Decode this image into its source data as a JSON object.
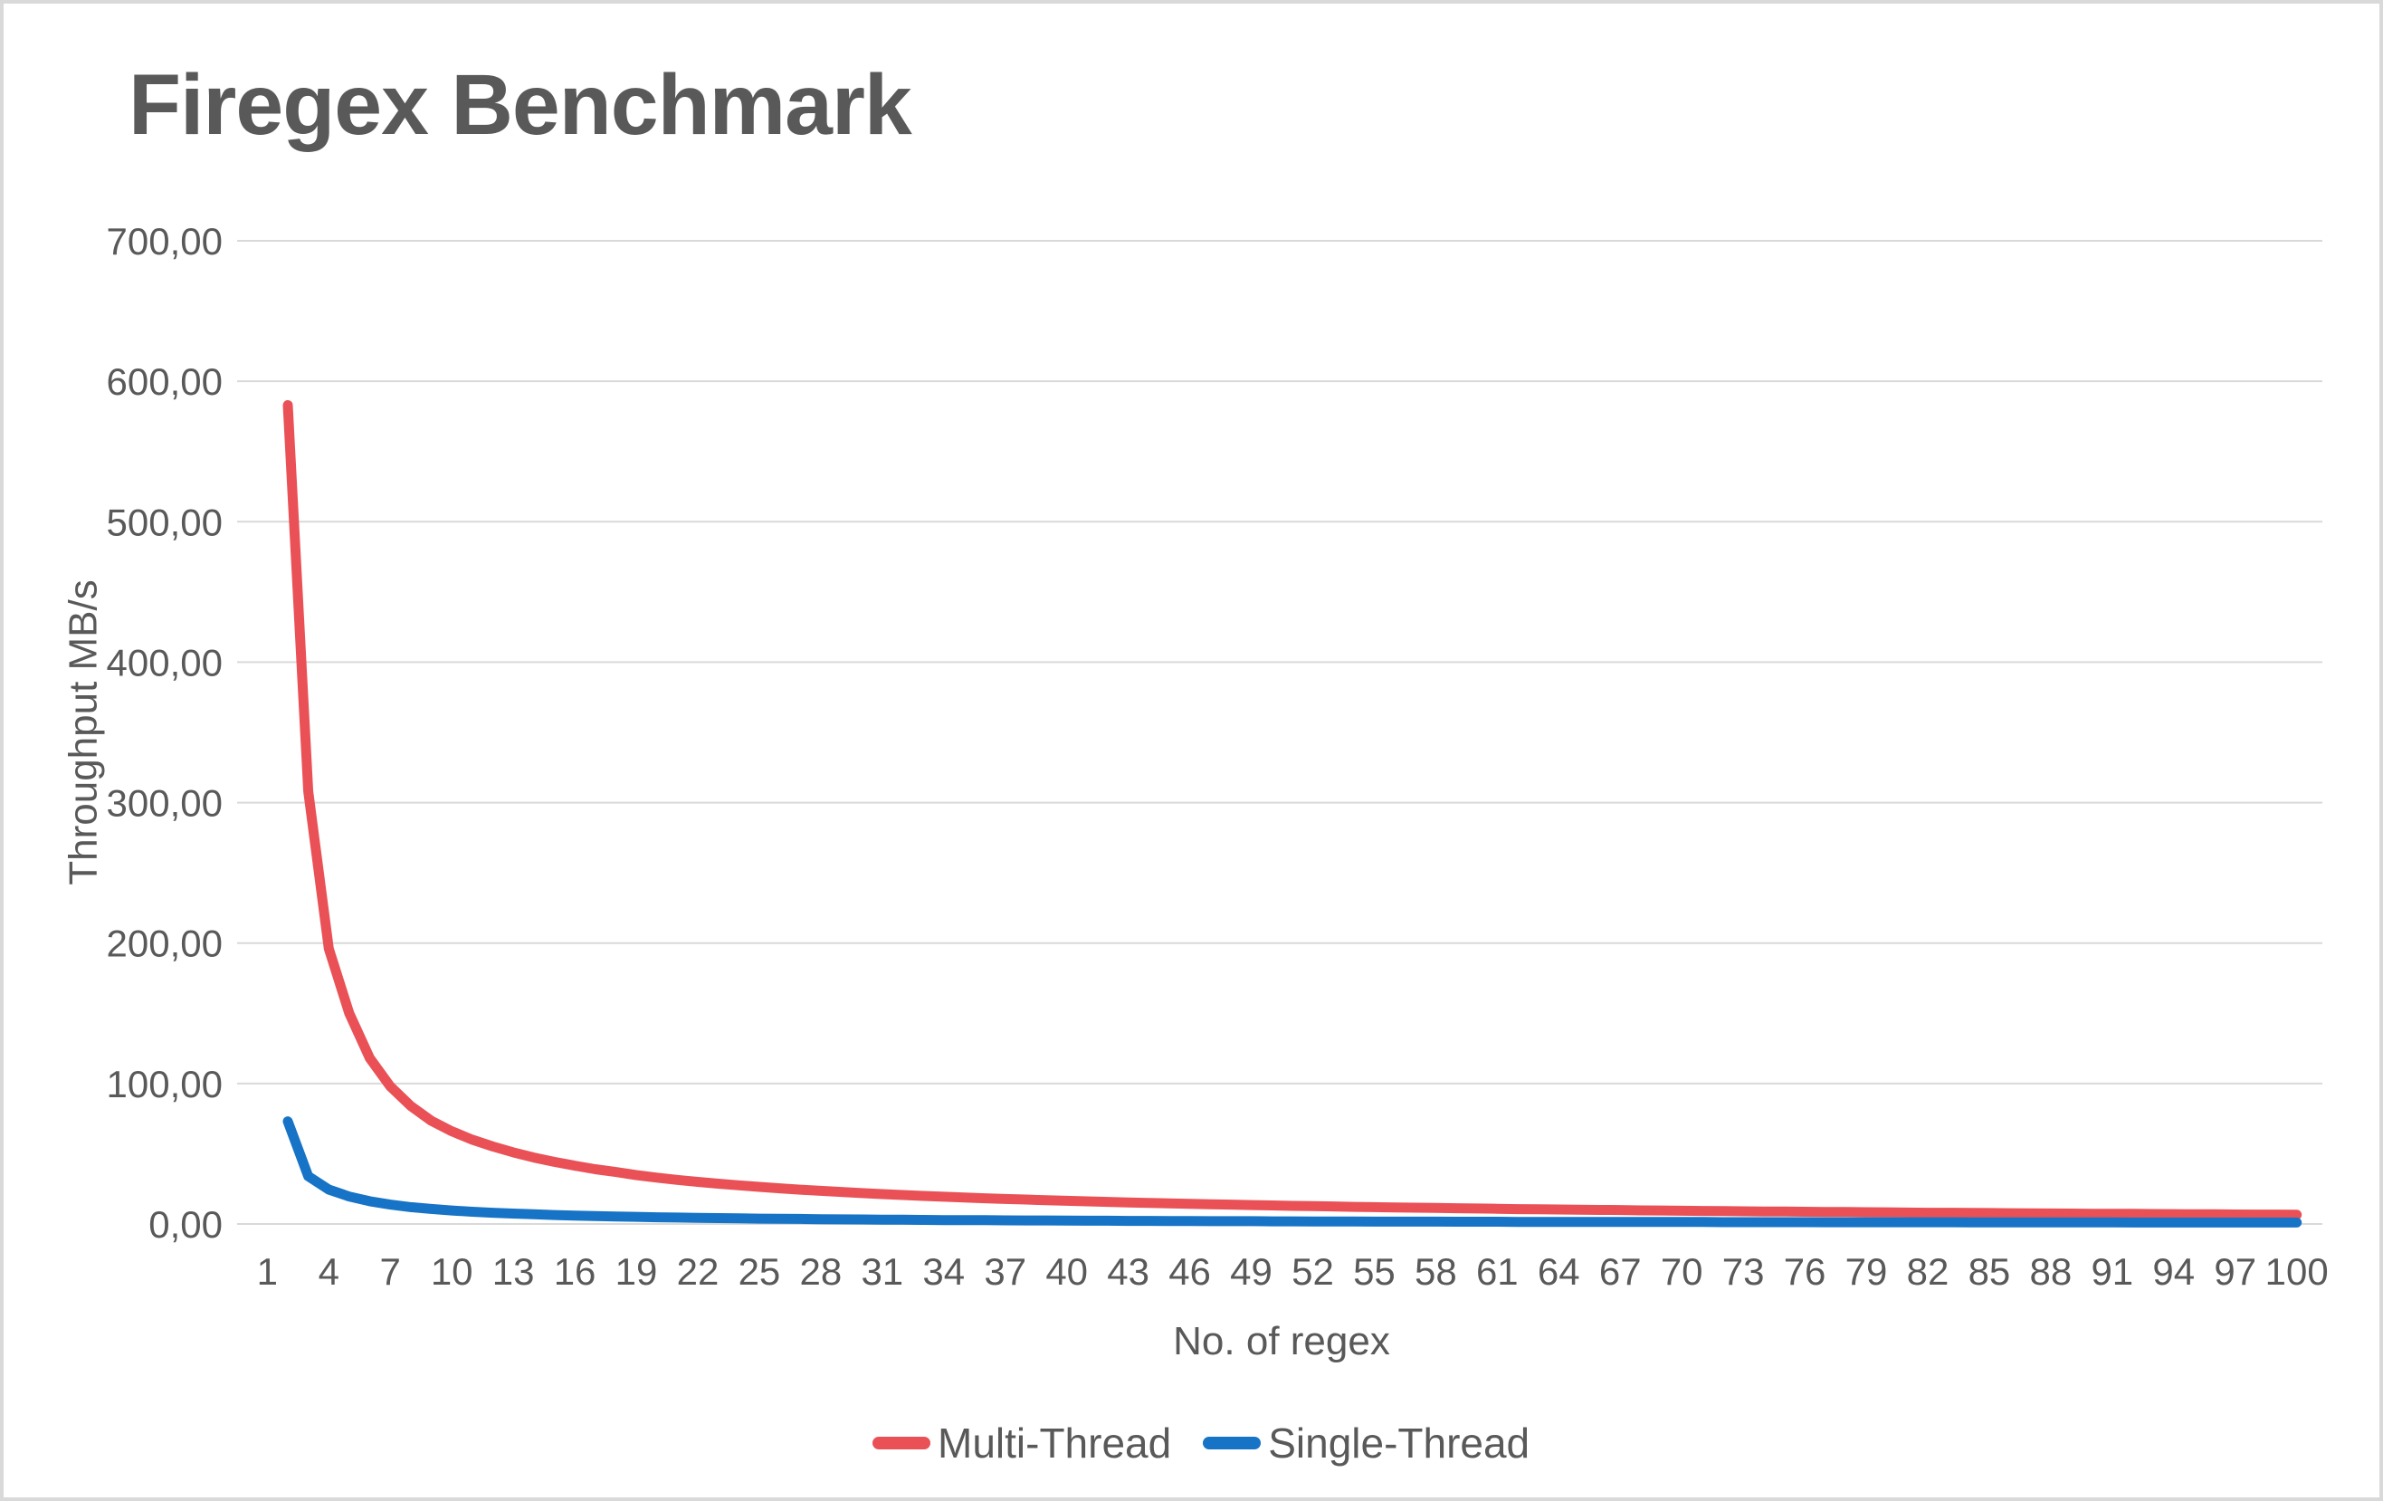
{
  "page": {
    "background_color": "#ffffff",
    "border_color": "#d9d9d9",
    "text_color": "#595959",
    "gridline_color": "#d9d9d9"
  },
  "chart_data": {
    "type": "line",
    "title": "Firegex Benchmark",
    "xlabel": "No. of regex",
    "ylabel": "Throughput MB/s",
    "ylim": [
      0,
      700
    ],
    "grid": true,
    "legend_position": "bottom",
    "y_ticks": [
      0,
      100,
      200,
      300,
      400,
      500,
      600,
      700
    ],
    "y_tick_labels": [
      "0,00",
      "100,00",
      "200,00",
      "300,00",
      "400,00",
      "500,00",
      "600,00",
      "700,00"
    ],
    "x_tick_labels": [
      "1",
      "4",
      "7",
      "10",
      "13",
      "16",
      "19",
      "22",
      "25",
      "28",
      "31",
      "34",
      "37",
      "40",
      "43",
      "46",
      "49",
      "52",
      "55",
      "58",
      "61",
      "64",
      "67",
      "70",
      "73",
      "76",
      "79",
      "82",
      "85",
      "88",
      "91",
      "94",
      "97",
      "100"
    ],
    "categories": [
      1,
      2,
      3,
      4,
      5,
      6,
      7,
      8,
      9,
      10,
      11,
      12,
      13,
      14,
      15,
      16,
      17,
      18,
      19,
      20,
      21,
      22,
      23,
      24,
      25,
      26,
      27,
      28,
      29,
      30,
      31,
      32,
      33,
      34,
      35,
      36,
      37,
      38,
      39,
      40,
      41,
      42,
      43,
      44,
      45,
      46,
      47,
      48,
      49,
      50,
      51,
      52,
      53,
      54,
      55,
      56,
      57,
      58,
      59,
      60,
      61,
      62,
      63,
      64,
      65,
      66,
      67,
      68,
      69,
      70,
      71,
      72,
      73,
      74,
      75,
      76,
      77,
      78,
      79,
      80,
      81,
      82,
      83,
      84,
      85,
      86,
      87,
      88,
      89,
      90,
      91,
      92,
      93,
      94,
      95,
      96,
      97,
      98,
      99,
      100
    ],
    "series": [
      {
        "name": "Multi-Thread",
        "color": "#ea5156",
        "values": [
          null,
          583,
          308,
          196,
          150,
          118,
          98,
          84,
          73.5,
          66,
          60,
          55.2,
          51,
          47.3,
          44.2,
          41.5,
          39,
          37,
          34.8,
          33,
          31.4,
          30,
          28.7,
          27.5,
          26.4,
          25.4,
          24.4,
          23.6,
          22.8,
          22,
          21.3,
          20.6,
          20,
          19.4,
          18.9,
          18.3,
          17.8,
          17.4,
          16.9,
          16.5,
          16.1,
          15.7,
          15.3,
          15,
          14.7,
          14.3,
          14,
          13.8,
          13.5,
          13.2,
          12.9,
          12.7,
          12.5,
          12.2,
          12,
          11.8,
          11.6,
          11.4,
          11.2,
          11,
          10.8,
          10.6,
          10.5,
          10.3,
          10.2,
          10,
          9.9,
          9.7,
          9.6,
          9.4,
          9.3,
          9.2,
          9,
          8.9,
          8.8,
          8.7,
          8.6,
          8.5,
          8.4,
          8.3,
          8.1,
          8,
          8,
          7.9,
          7.8,
          7.7,
          7.6,
          7.5,
          7.4,
          7.3,
          7.3,
          7.2,
          7.1,
          7,
          6.9,
          6.9,
          6.8,
          6.7,
          6.7,
          6.6
        ]
      },
      {
        "name": "Single-Thread",
        "color": "#1673c6",
        "values": [
          null,
          73,
          34,
          24.5,
          19.5,
          16.2,
          13.8,
          12,
          10.7,
          9.6,
          8.7,
          8,
          7.4,
          6.9,
          6.4,
          6,
          5.6,
          5.3,
          5.1,
          4.8,
          4.6,
          4.4,
          4.2,
          4,
          3.8,
          3.7,
          3.6,
          3.4,
          3.3,
          3.2,
          3.1,
          3,
          2.9,
          2.8,
          2.7,
          2.7,
          2.6,
          2.5,
          2.5,
          2.4,
          2.3,
          2.3,
          2.2,
          2.2,
          2.1,
          2.1,
          2,
          2,
          2,
          1.9,
          1.9,
          1.8,
          1.8,
          1.8,
          1.7,
          1.7,
          1.7,
          1.7,
          1.6,
          1.6,
          1.6,
          1.5,
          1.5,
          1.5,
          1.5,
          1.5,
          1.4,
          1.4,
          1.4,
          1.4,
          1.4,
          1.3,
          1.3,
          1.3,
          1.3,
          1.3,
          1.2,
          1.2,
          1.2,
          1.2,
          1.2,
          1.2,
          1.2,
          1.1,
          1.1,
          1.1,
          1.1,
          1.1,
          1.1,
          1.1,
          1.1,
          1,
          1,
          1,
          1,
          1,
          1,
          1,
          1,
          1
        ]
      }
    ]
  }
}
